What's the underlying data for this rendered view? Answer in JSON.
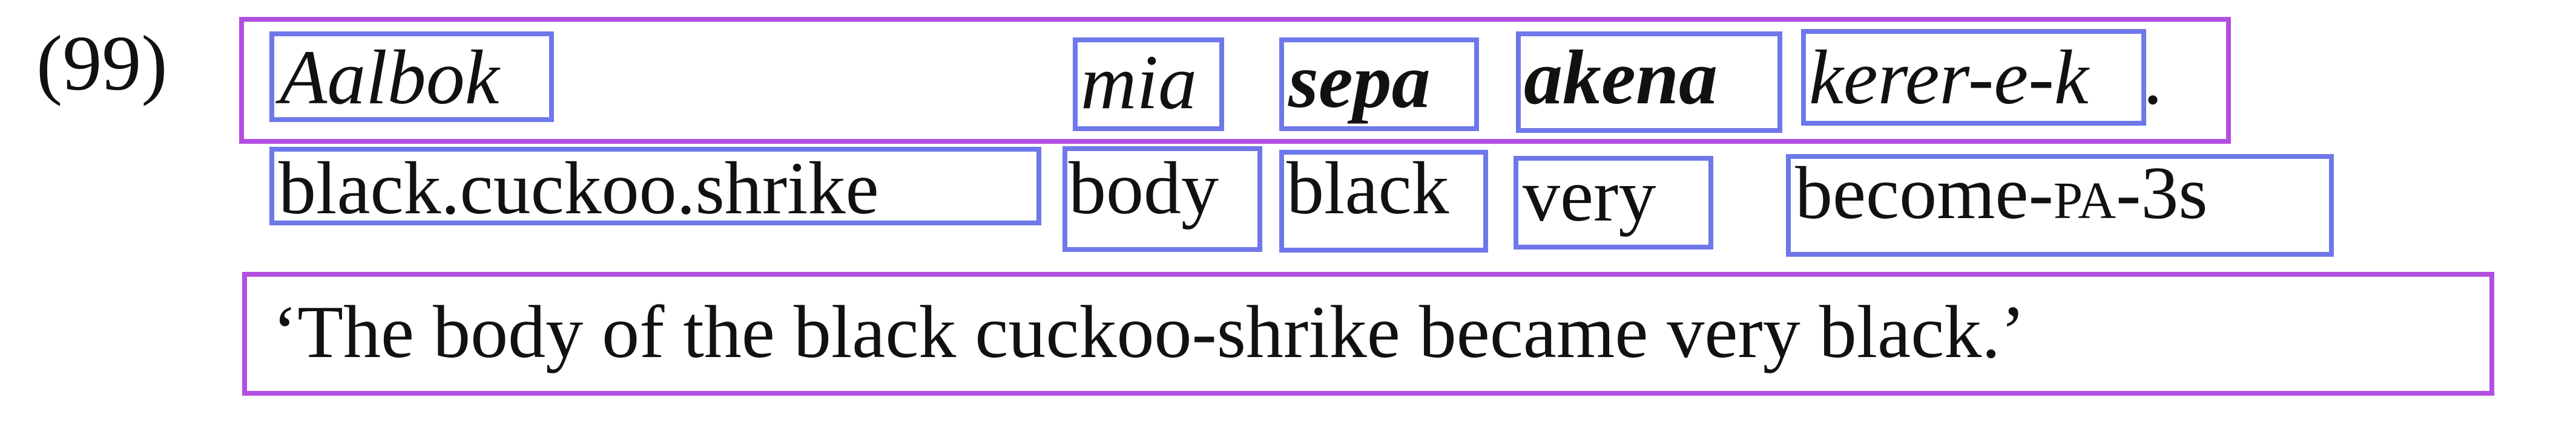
{
  "example": {
    "number": "(99)",
    "source_line": {
      "words": [
        {
          "text": "Aalbok",
          "bold": false
        },
        {
          "text": "mia",
          "bold": false
        },
        {
          "text": "sepa",
          "bold": true
        },
        {
          "text": "akena",
          "bold": true
        },
        {
          "text": "kerer-e-k",
          "bold": false
        }
      ],
      "final_punct": "."
    },
    "gloss_line": {
      "glosses": [
        "black.cuckoo.shrike",
        "body",
        "black",
        "very"
      ],
      "last_gloss": {
        "pre": "become-",
        "small_caps": "pa",
        "post": "-3s"
      }
    },
    "translation": "‘The body of the black cuckoo-shrike became very black.’"
  },
  "colors": {
    "line_box": "#b34fe0",
    "word_box": "#6e78ea"
  }
}
